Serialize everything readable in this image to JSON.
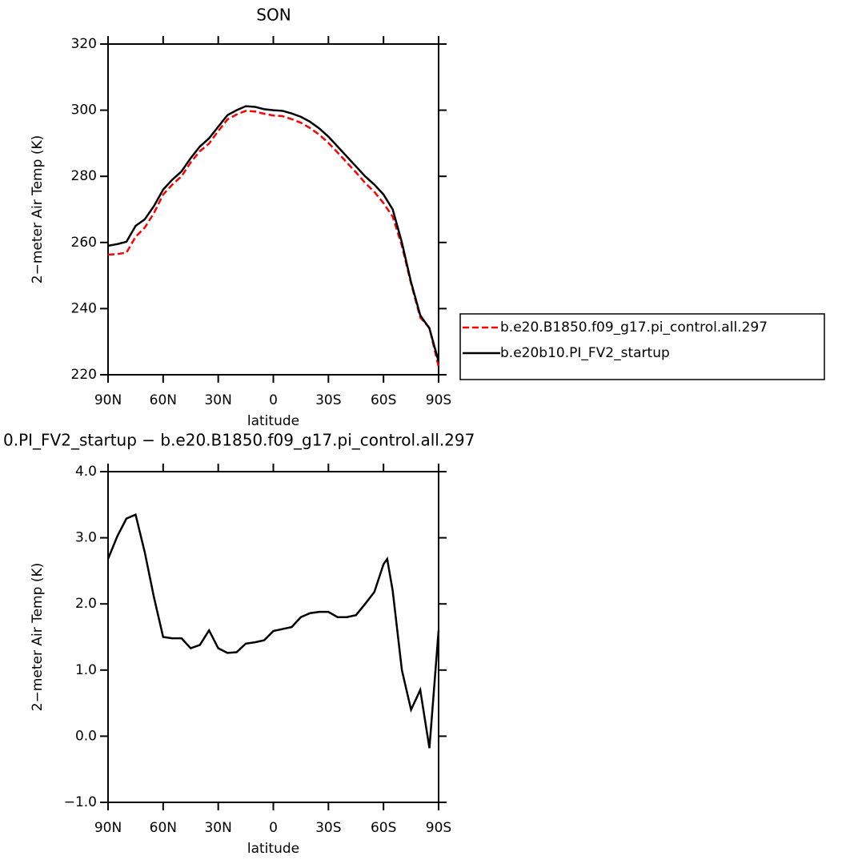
{
  "chart_data": [
    {
      "type": "line",
      "title": "SON",
      "x_label": "latitude",
      "y_label": "2−meter Air Temp (K)",
      "x": [
        90,
        85,
        80,
        75,
        70,
        65,
        60,
        55,
        50,
        45,
        40,
        35,
        30,
        25,
        20,
        15,
        10,
        5,
        0,
        -5,
        -10,
        -15,
        -20,
        -25,
        -30,
        -35,
        -40,
        -45,
        -50,
        -55,
        -60,
        -65,
        -70,
        -75,
        -80,
        -85,
        -90
      ],
      "series": [
        {
          "name": "b.e20.B1850.f09_g17.pi_control.all.297",
          "color": "#ff0000",
          "line_style": "dashed",
          "values": [
            256.3,
            256.5,
            256.9,
            261.7,
            264.5,
            268.9,
            274.5,
            277.5,
            280,
            284.2,
            287.6,
            289.9,
            293.7,
            297.2,
            298.7,
            299.8,
            299.6,
            298.9,
            298.4,
            298.2,
            297.3,
            296.2,
            294.6,
            292.6,
            290.1,
            287.2,
            284.2,
            281.2,
            278,
            275.3,
            271.9,
            267.8,
            259,
            247.6,
            237.3,
            234.2,
            222.4
          ]
        },
        {
          "name": "b.e20b10.PI_FV2_startup",
          "color": "#000000",
          "line_style": "solid",
          "values": [
            259,
            259.5,
            260.2,
            265,
            267,
            271,
            276,
            279,
            281.5,
            285.5,
            289,
            291.5,
            295,
            298.5,
            300,
            301.2,
            301,
            300.3,
            300,
            299.8,
            299,
            298,
            296.5,
            294.5,
            292,
            289,
            286,
            283,
            280,
            277.5,
            274.5,
            270,
            260,
            248,
            238,
            234,
            224
          ]
        }
      ],
      "xlim": [
        90,
        -90
      ],
      "xticks": [
        {
          "value": 90,
          "label": "90N"
        },
        {
          "value": 60,
          "label": "60N"
        },
        {
          "value": 30,
          "label": "30N"
        },
        0,
        {
          "value": -30,
          "label": "30S"
        },
        {
          "value": -60,
          "label": "60S"
        },
        {
          "value": -90,
          "label": "90S"
        }
      ],
      "ylim": [
        220,
        320
      ],
      "yticks": [
        220,
        240,
        260,
        280,
        300,
        320
      ],
      "legend": "outside-right"
    },
    {
      "type": "line",
      "title": "0.PI_FV2_startup − b.e20.B1850.f09_g17.pi_control.all.297",
      "x_label": "latitude",
      "y_label": "2−meter Air Temp (K)",
      "x": [
        90,
        85,
        80,
        75,
        70,
        65,
        60,
        55,
        50,
        45,
        40,
        35,
        30,
        25,
        20,
        15,
        10,
        5,
        0,
        -5,
        -10,
        -15,
        -20,
        -25,
        -30,
        -35,
        -40,
        -45,
        -50,
        -55,
        -60,
        -62,
        -65,
        -70,
        -75,
        -80,
        -85,
        -90
      ],
      "values": [
        2.68,
        3.02,
        3.29,
        3.35,
        2.78,
        2.1,
        1.5,
        1.48,
        1.48,
        1.33,
        1.38,
        1.6,
        1.33,
        1.26,
        1.27,
        1.4,
        1.42,
        1.45,
        1.59,
        1.62,
        1.65,
        1.8,
        1.86,
        1.88,
        1.88,
        1.8,
        1.8,
        1.83,
        2.0,
        2.18,
        2.6,
        2.68,
        2.2,
        1.0,
        0.4,
        0.7,
        -0.18,
        1.6
      ],
      "color": "#000000",
      "xlim": [
        90,
        -90
      ],
      "xticks": [
        {
          "value": 90,
          "label": "90N"
        },
        {
          "value": 60,
          "label": "60N"
        },
        {
          "value": 30,
          "label": "30N"
        },
        0,
        {
          "value": -30,
          "label": "30S"
        },
        {
          "value": -60,
          "label": "60S"
        },
        {
          "value": -90,
          "label": "90S"
        }
      ],
      "ylim": [
        -1,
        4
      ],
      "yticks": [
        {
          "value": -1,
          "label": "−1.0"
        },
        {
          "value": 0,
          "label": "0.0"
        },
        {
          "value": 1,
          "label": "1.0"
        },
        {
          "value": 2,
          "label": "2.0"
        },
        {
          "value": 3,
          "label": "3.0"
        },
        {
          "value": 4,
          "label": "4.0"
        }
      ]
    }
  ]
}
